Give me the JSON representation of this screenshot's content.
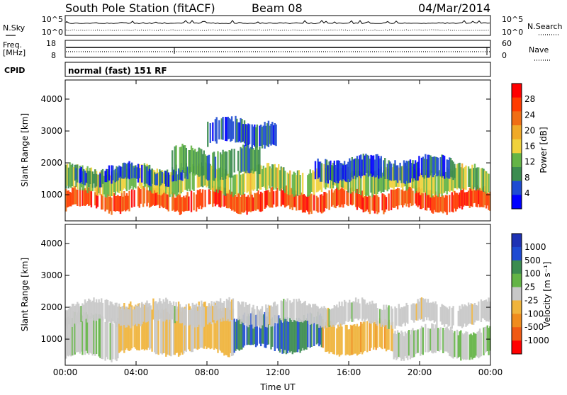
{
  "header": {
    "station": "South Pole Station (fitACF)",
    "beam": "Beam 08",
    "date": "04/Mar/2014"
  },
  "noise_panel": {
    "left_label": "N.Sky",
    "right_label": "N.Search",
    "left_ticks": [
      "10^5",
      "10^0"
    ],
    "right_ticks": [
      "10^5",
      "10^0"
    ]
  },
  "freq_panel": {
    "left_label_line1": "Freq.",
    "left_label_line2": "[MHz]",
    "left_ticks": [
      "18",
      "8"
    ],
    "right_label": "Nave",
    "right_ticks": [
      "60",
      "0"
    ]
  },
  "cpid_panel": {
    "label": "CPID",
    "text": "normal (fast) 151 RF"
  },
  "colors": {
    "power_scale": [
      "#0000ff",
      "#1e4bd2",
      "#3c8c50",
      "#64b446",
      "#f0d23c",
      "#f0aa28",
      "#f06e14",
      "#ff3c00",
      "#ff0000"
    ],
    "velocity_scale": [
      "#1e32b4",
      "#1e4bd2",
      "#3c8c50",
      "#64b446",
      "#c8c8c8",
      "#f0b43c",
      "#f08c1e",
      "#f05a14",
      "#ff0000"
    ]
  },
  "chart_data": [
    {
      "type": "heatmap",
      "title": "",
      "quantity": "Power",
      "xlabel": "Time UT",
      "ylabel": "Slant Range [km]",
      "xlim": [
        "00:00",
        "24:00"
      ],
      "ylim": [
        180,
        4600
      ],
      "x_ticks": [
        "00:00",
        "04:00",
        "08:00",
        "12:00",
        "16:00",
        "20:00",
        "00:00"
      ],
      "y_ticks": [
        1000,
        2000,
        3000,
        4000
      ],
      "colorbar_label": "Power [dB]",
      "colorbar_ticks": [
        28,
        24,
        20,
        16,
        12,
        8,
        4
      ],
      "colorbar_range": [
        0,
        32
      ],
      "bands": [
        {
          "t_start": 0.0,
          "t_end": 24.0,
          "range_low": 550,
          "range_high": 1100,
          "value": 26
        },
        {
          "t_start": 0.0,
          "t_end": 24.0,
          "range_low": 1100,
          "range_high": 1800,
          "value": 14
        },
        {
          "t_start": 0.5,
          "t_end": 7.0,
          "range_low": 1400,
          "range_high": 1850,
          "value": 6
        },
        {
          "t_start": 6.0,
          "t_end": 11.0,
          "range_low": 1600,
          "range_high": 2400,
          "value": 10
        },
        {
          "t_start": 14.0,
          "t_end": 22.0,
          "range_low": 1500,
          "range_high": 2100,
          "value": 5
        },
        {
          "t_start": 8.0,
          "t_end": 12.0,
          "range_low": 2600,
          "range_high": 3300,
          "value": 6
        }
      ]
    },
    {
      "type": "heatmap",
      "title": "",
      "quantity": "Velocity",
      "xlabel": "Time UT",
      "ylabel": "Slant Range [km]",
      "xlim": [
        "00:00",
        "24:00"
      ],
      "ylim": [
        180,
        4600
      ],
      "x_ticks": [
        "00:00",
        "04:00",
        "08:00",
        "12:00",
        "16:00",
        "20:00",
        "00:00"
      ],
      "y_ticks": [
        1000,
        2000,
        3000,
        4000
      ],
      "colorbar_label": "Velocity [m s⁻¹]",
      "colorbar_ticks": [
        "1000",
        "500",
        "100",
        "25",
        "-25",
        "-100",
        "-500",
        "-1000"
      ],
      "colorbar_range": [
        -1250,
        1250
      ],
      "bands": [
        {
          "t_start": 0.0,
          "t_end": 3.0,
          "range_low": 450,
          "range_high": 1700,
          "value": 80
        },
        {
          "t_start": 3.0,
          "t_end": 9.5,
          "range_low": 600,
          "range_high": 2000,
          "value": -200
        },
        {
          "t_start": 9.5,
          "t_end": 14.5,
          "range_low": 700,
          "range_high": 1700,
          "value": 700
        },
        {
          "t_start": 14.5,
          "t_end": 18.5,
          "range_low": 600,
          "range_high": 1500,
          "value": -300
        },
        {
          "t_start": 18.5,
          "t_end": 24.0,
          "range_low": 500,
          "range_high": 1300,
          "value": 80
        },
        {
          "t_start": 0.0,
          "t_end": 24.0,
          "range_low": 1500,
          "range_high": 2100,
          "value": 0
        }
      ]
    }
  ]
}
